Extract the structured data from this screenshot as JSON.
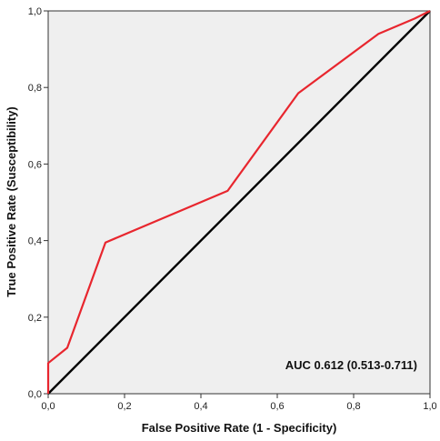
{
  "chart_data": {
    "type": "line",
    "xlabel": "False Positive Rate (1 - Specificity)",
    "ylabel": "True Positive Rate (Susceptibility)",
    "xlim": [
      0,
      1
    ],
    "ylim": [
      0,
      1
    ],
    "xticks": [
      "0,0",
      "0,2",
      "0,4",
      "0,6",
      "0,8",
      "1,0"
    ],
    "yticks": [
      "0,0",
      "0,2",
      "0,4",
      "0,6",
      "0,8",
      "1,0"
    ],
    "grid": false,
    "series": [
      {
        "x": [
          0.0,
          0.0,
          0.05,
          0.15,
          0.47,
          0.655,
          0.865,
          0.96,
          1.0
        ],
        "y": [
          0.0,
          0.08,
          0.12,
          0.395,
          0.53,
          0.785,
          0.94,
          0.98,
          1.0
        ],
        "color": "#e8262e"
      },
      {
        "x": [
          0,
          1
        ],
        "y": [
          0,
          1
        ],
        "color": "#000000"
      }
    ],
    "annotation": "AUC 0.612 (0.513-0.711)",
    "plot_background": "#efefef"
  }
}
